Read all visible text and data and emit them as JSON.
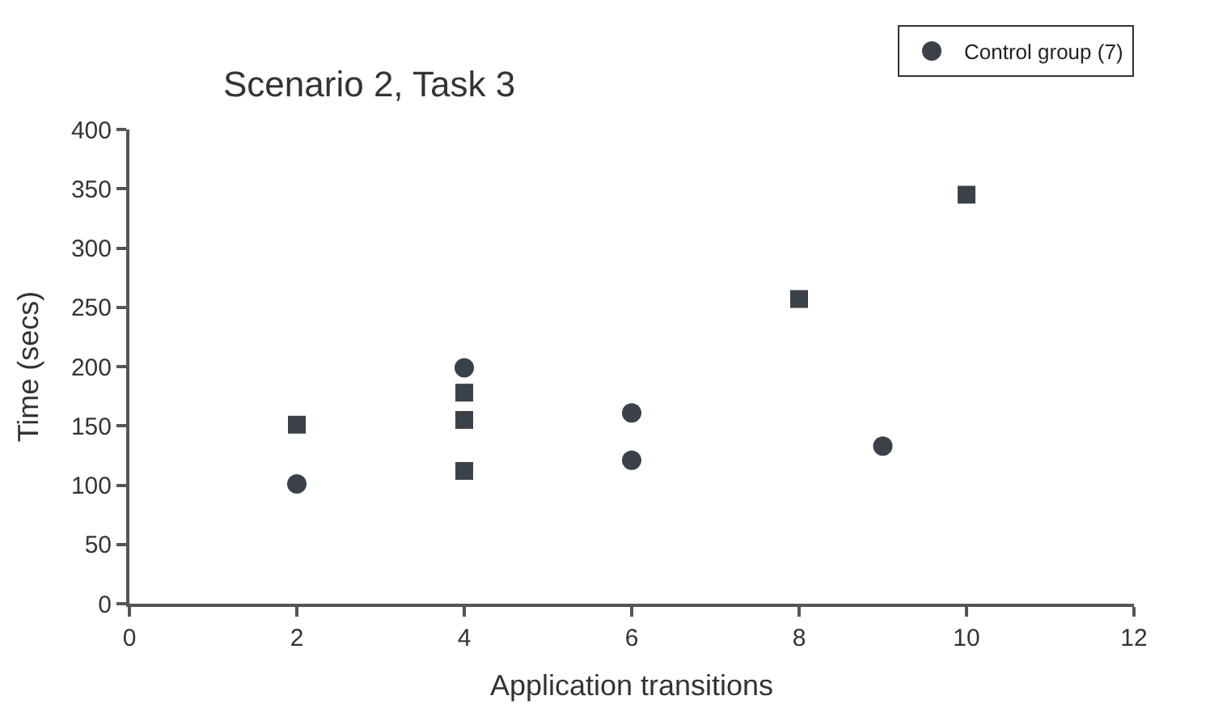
{
  "chart_data": {
    "type": "scatter",
    "title": "Scenario 2, Task 3",
    "xlabel": "Application transitions",
    "ylabel": "Time (secs)",
    "xlim": [
      0,
      12
    ],
    "xticks": [
      0,
      2,
      4,
      6,
      8,
      10,
      12
    ],
    "ylim": [
      0,
      400
    ],
    "yticks": [
      0,
      50,
      100,
      150,
      200,
      250,
      300,
      350,
      400
    ],
    "legend": "top right",
    "series": [
      {
        "color": "#3a4148",
        "marker": "square",
        "x": [
          2,
          4,
          4,
          4,
          8,
          10
        ],
        "values": [
          151,
          178,
          155,
          112,
          257,
          345
        ]
      },
      {
        "name": "Control group (7)",
        "color": "#3a4148",
        "marker": "circle",
        "x": [
          2,
          4,
          6,
          6,
          9
        ],
        "values": [
          101,
          199,
          161,
          121,
          133
        ]
      }
    ]
  }
}
